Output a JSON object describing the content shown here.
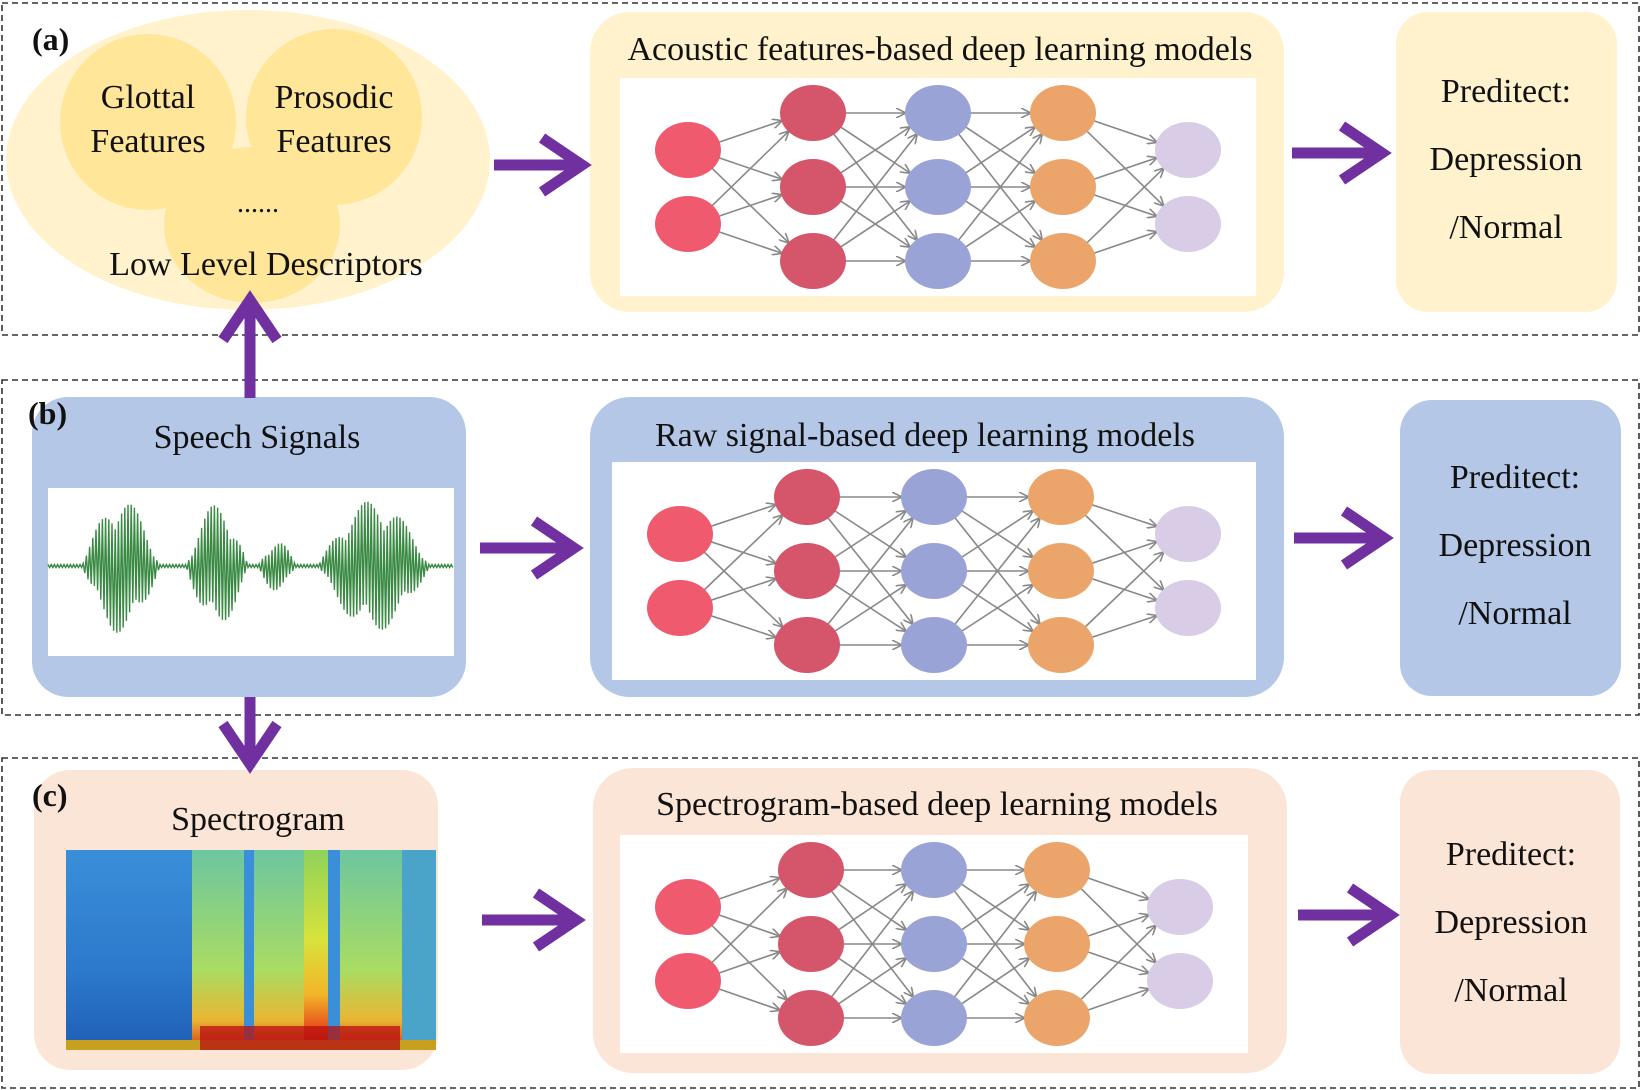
{
  "panels": [
    {
      "id": "a",
      "label": "(a)",
      "input": {
        "glottal": [
          "Glottal",
          "Features"
        ],
        "prosodic": [
          "Prosodic",
          "Features"
        ],
        "ellipsis": "......",
        "caption": "Low Level Descriptors"
      },
      "model_title": "Acoustic features-based deep learning models",
      "prediction": [
        "Preditect:",
        "Depression",
        "/Normal"
      ]
    },
    {
      "id": "b",
      "label": "(b)",
      "input": {
        "title": "Speech Signals"
      },
      "model_title": "Raw signal-based deep learning models",
      "prediction": [
        "Preditect:",
        "Depression",
        "/Normal"
      ]
    },
    {
      "id": "c",
      "label": "(c)",
      "input": {
        "title": "Spectrogram"
      },
      "model_title": "Spectrogram-based deep learning models",
      "prediction": [
        "Preditect:",
        "Depression",
        "/Normal"
      ]
    }
  ],
  "network": {
    "layer_sizes": [
      2,
      3,
      3,
      3,
      2
    ]
  },
  "colors": {
    "arrow": "#7030a0",
    "panel_a_fill": "#fff2cc",
    "panel_a_bubble": "#ffe699",
    "panel_b_fill": "#b4c7e7",
    "panel_c_fill": "#fbe5d6",
    "layer_colors": [
      "#f05a6e",
      "#d5566a",
      "#9aa3d6",
      "#eba56a",
      "#d9cce6"
    ],
    "waveform": "#3a8a44"
  }
}
